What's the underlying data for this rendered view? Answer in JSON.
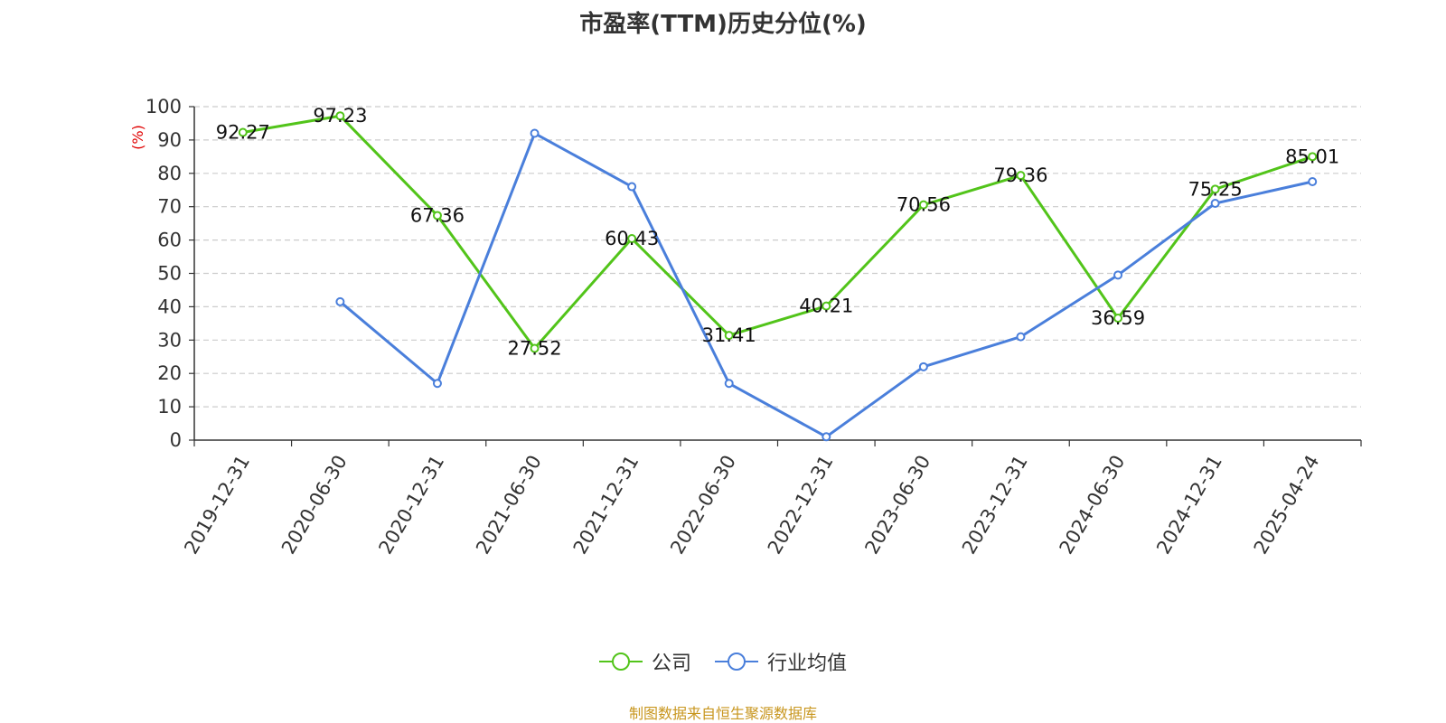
{
  "title": "市盈率(TTM)历史分位(%)",
  "source": "制图数据来自恒生聚源数据库",
  "chart_data": {
    "type": "line",
    "title": "市盈率(TTM)历史分位(%)",
    "ylabel": "(%)",
    "ylim": [
      0,
      100
    ],
    "yticks": [
      0,
      10,
      20,
      30,
      40,
      50,
      60,
      70,
      80,
      90,
      100
    ],
    "grid": true,
    "legend_position": "bottom",
    "x_tick_labels": [
      "2019-12-31",
      "2020-06-30",
      "2020-12-31",
      "2021-06-30",
      "2021-12-31",
      "2022-06-30",
      "2022-12-31",
      "2023-06-30",
      "2023-12-31",
      "2024-06-30",
      "2024-12-31",
      "2025-04-24"
    ],
    "series": [
      {
        "name": "公司",
        "color": "#52c41a",
        "show_labels": true,
        "points": [
          {
            "x": "2019-12-31",
            "y": 92.27
          },
          {
            "x": "2020-06-30",
            "y": 97.23
          },
          {
            "x": "2020-12-31",
            "y": 67.36
          },
          {
            "x": "2021-06-30",
            "y": 27.52
          },
          {
            "x": "2021-12-31",
            "y": 60.43
          },
          {
            "x": "2022-06-30",
            "y": 31.41
          },
          {
            "x": "2022-12-31",
            "y": 40.21
          },
          {
            "x": "2023-06-30",
            "y": 70.56
          },
          {
            "x": "2023-12-31",
            "y": 79.36
          },
          {
            "x": "2024-06-30",
            "y": 36.59
          },
          {
            "x": "2024-12-31",
            "y": 75.25
          },
          {
            "x": "2025-04-24",
            "y": 85.01
          }
        ]
      },
      {
        "name": "行业均值",
        "color": "#4a7fdb",
        "show_labels": false,
        "points": [
          {
            "x": "2020-06-30",
            "y": 41.5
          },
          {
            "x": "2020-12-31",
            "y": 17.0
          },
          {
            "x": "2021-06-30",
            "y": 92.0
          },
          {
            "x": "2021-12-31",
            "y": 76.0
          },
          {
            "x": "2022-06-30",
            "y": 17.0
          },
          {
            "x": "2022-12-31",
            "y": 1.0
          },
          {
            "x": "2023-06-30",
            "y": 22.0
          },
          {
            "x": "2023-12-31",
            "y": 31.0
          },
          {
            "x": "2024-06-30",
            "y": 49.5
          },
          {
            "x": "2024-12-31",
            "y": 71.0
          },
          {
            "x": "2025-04-24",
            "y": 77.5
          }
        ]
      }
    ]
  }
}
